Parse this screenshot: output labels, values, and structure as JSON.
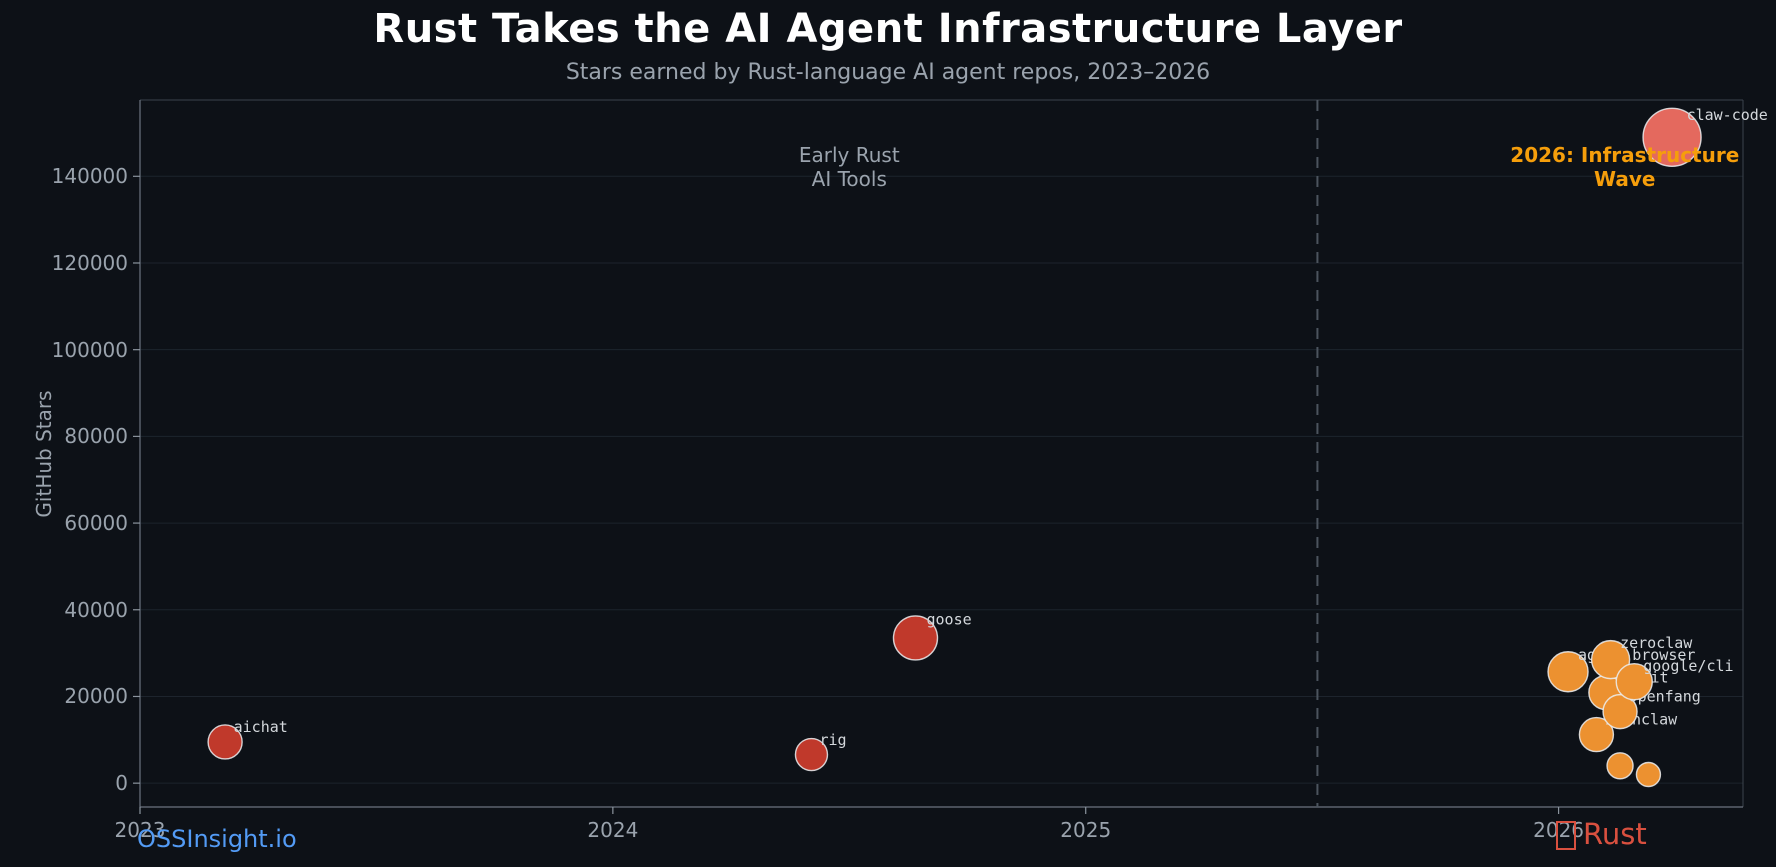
{
  "page": {
    "title": "Rust Takes the AI Agent Infrastructure Layer",
    "subtitle": "Stars earned by Rust-language AI agent repos, 2023–2026"
  },
  "watermarks": {
    "left_text": "OSSInsight.io",
    "right_icon": "crab-missing-glyph-box",
    "right_text": "Rust"
  },
  "colors": {
    "background": "#0d1117",
    "title_text": "#ffffff",
    "muted_text": "#9aa3ad",
    "grid": "#1d242d",
    "spine_main": "#6b7480",
    "spine_faint": "#3c434c",
    "tick_mark": "#8b949e",
    "divider_dashed": "#4c545e",
    "bubble_red": "#c0392b",
    "bubble_orange": "#ec9130",
    "bubble_salmon": "#e4695e",
    "bubble_stroke": "#eceff1",
    "bubble_label_text": "#d4d8dc",
    "annotation_orange": "#f59e0b",
    "watermark_blue": "#539bf5",
    "watermark_rust_red": "#d9503f"
  },
  "chart_data": {
    "type": "scatter",
    "title": "Rust Takes the AI Agent Infrastructure Layer",
    "subtitle": "Stars earned by Rust-language AI agent repos, 2023–2026",
    "xlabel": "",
    "ylabel": "GitHub Stars",
    "x_ticks": [
      2023,
      2024,
      2025,
      2026
    ],
    "y_ticks": [
      0,
      20000,
      40000,
      60000,
      80000,
      100000,
      120000,
      140000
    ],
    "xlim": [
      2023.0,
      2026.39
    ],
    "ylim": [
      -5500,
      157600
    ],
    "grid": "horizontal-only",
    "legend": "none",
    "divider": {
      "x": 2025.49,
      "style": "dashed",
      "orientation": "vertical"
    },
    "annotations": [
      {
        "id": "early-rust",
        "lines": [
          "Early Rust",
          "AI Tools"
        ],
        "x": 2024.5,
        "y": 145000,
        "color_key": "muted_text",
        "bold": false
      },
      {
        "id": "infra-wave",
        "lines": [
          "2026: Infrastructure",
          "Wave"
        ],
        "x": 2026.14,
        "y": 145000,
        "color_key": "annotation_orange",
        "bold": true
      }
    ],
    "points": [
      {
        "name": "aichat",
        "year": 2023.18,
        "stars": 9500,
        "r": 17,
        "color_key": "bubble_red",
        "labeled": true
      },
      {
        "name": "rig",
        "year": 2024.42,
        "stars": 6600,
        "r": 16,
        "color_key": "bubble_red",
        "labeled": true
      },
      {
        "name": "goose",
        "year": 2024.64,
        "stars": 33500,
        "r": 22,
        "color_key": "bubble_red",
        "labeled": true
      },
      {
        "name": "agent-browser",
        "year": 2026.02,
        "stars": 25700,
        "r": 20,
        "color_key": "bubble_orange",
        "labeled": true
      },
      {
        "name": "ironclaw",
        "year": 2026.08,
        "stars": 11200,
        "r": 17,
        "color_key": "bubble_orange",
        "labeled": true
      },
      {
        "name": "llmfit",
        "year": 2026.1,
        "stars": 20900,
        "r": 17,
        "color_key": "bubble_orange",
        "labeled": true
      },
      {
        "name": "zeroclaw",
        "year": 2026.11,
        "stars": 28500,
        "r": 19,
        "color_key": "bubble_orange",
        "labeled": true
      },
      {
        "name": "openfang",
        "year": 2026.13,
        "stars": 16500,
        "r": 17,
        "color_key": "bubble_orange",
        "labeled": true
      },
      {
        "name": "unlabeled-1",
        "year": 2026.13,
        "stars": 4000,
        "r": 13,
        "color_key": "bubble_orange",
        "labeled": false
      },
      {
        "name": "google/cli",
        "year": 2026.16,
        "stars": 23400,
        "r": 18,
        "color_key": "bubble_orange",
        "labeled": true
      },
      {
        "name": "unlabeled-2",
        "year": 2026.19,
        "stars": 2000,
        "r": 12,
        "color_key": "bubble_orange",
        "labeled": false
      },
      {
        "name": "claw-code",
        "year": 2026.24,
        "stars": 149000,
        "r": 29,
        "color_key": "bubble_salmon",
        "labeled": true
      }
    ]
  }
}
